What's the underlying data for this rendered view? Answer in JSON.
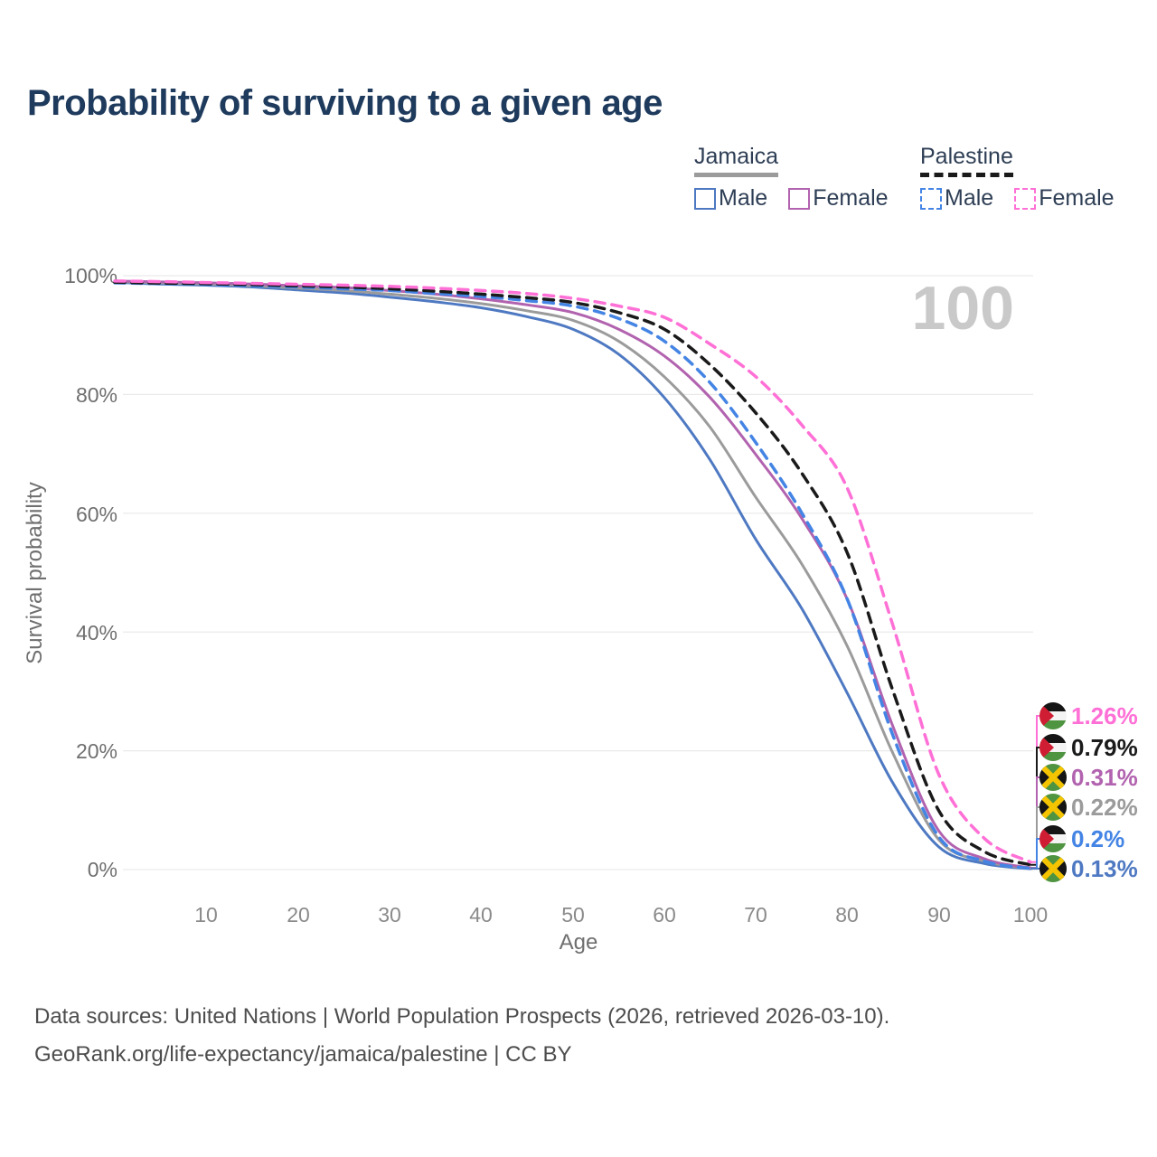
{
  "title": "Probability of surviving to a given age",
  "watermark": "100",
  "legend": {
    "groups": [
      {
        "label": "Jamaica",
        "line_style": "solid",
        "items": [
          {
            "label": "Male"
          },
          {
            "label": "Female"
          }
        ]
      },
      {
        "label": "Palestine",
        "line_style": "dashed",
        "items": [
          {
            "label": "Male"
          },
          {
            "label": "Female"
          }
        ]
      }
    ]
  },
  "chart_data": {
    "type": "line",
    "title": "Probability of surviving to a given age",
    "xlabel": "Age",
    "ylabel": "Survival probability",
    "xlim": [
      0,
      100
    ],
    "ylim": [
      0,
      100
    ],
    "grid": "horizontal-only",
    "x_ticks": [
      "10",
      "20",
      "30",
      "40",
      "50",
      "60",
      "70",
      "80",
      "90",
      "100"
    ],
    "y_ticks": [
      "0%",
      "20%",
      "40%",
      "60%",
      "80%",
      "100%"
    ],
    "ages": [
      0,
      5,
      10,
      15,
      20,
      25,
      30,
      35,
      40,
      45,
      50,
      55,
      60,
      65,
      70,
      75,
      80,
      85,
      90,
      95,
      100
    ],
    "series": [
      {
        "name": "Jamaica Male",
        "country": "Jamaica",
        "sex": "Male",
        "style": "solid",
        "color": "#4e79c2",
        "end_value_label": "0.13%",
        "values": [
          98.9,
          98.6,
          98.4,
          98.1,
          97.6,
          97.1,
          96.4,
          95.6,
          94.6,
          93.1,
          91.0,
          86.8,
          79.5,
          69.0,
          55.6,
          44.0,
          29.7,
          14.5,
          3.8,
          1.0,
          0.13
        ]
      },
      {
        "name": "Jamaica Both sexes",
        "country": "Jamaica",
        "sex": "Both",
        "style": "solid",
        "color": "#9b9b9b",
        "end_value_label": "0.22%",
        "values": [
          99.0,
          98.8,
          98.6,
          98.3,
          97.9,
          97.5,
          96.9,
          96.2,
          95.3,
          94.1,
          92.5,
          89.0,
          83.0,
          74.5,
          62.7,
          51.5,
          37.6,
          19.5,
          5.0,
          1.4,
          0.22
        ]
      },
      {
        "name": "Jamaica Female",
        "country": "Jamaica",
        "sex": "Female",
        "style": "solid",
        "color": "#b263af",
        "end_value_label": "0.31%",
        "values": [
          99.1,
          98.95,
          98.8,
          98.6,
          98.3,
          98.0,
          97.5,
          96.9,
          96.1,
          95.1,
          93.8,
          91.0,
          86.5,
          79.5,
          69.9,
          59.2,
          45.5,
          24.0,
          6.5,
          1.8,
          0.31
        ]
      },
      {
        "name": "Palestine Male",
        "country": "Palestine",
        "sex": "Male",
        "style": "dashed",
        "color": "#4484e4",
        "end_value_label": "0.2%",
        "values": [
          98.8,
          98.65,
          98.5,
          98.3,
          98.1,
          97.8,
          97.5,
          97.0,
          96.5,
          95.8,
          94.9,
          92.8,
          89.0,
          82.0,
          71.9,
          60.1,
          45.5,
          22.5,
          5.5,
          1.4,
          0.2
        ]
      },
      {
        "name": "Palestine Both sexes",
        "country": "Palestine",
        "sex": "Both",
        "style": "dashed",
        "color": "#1a1a1a",
        "end_value_label": "0.79%",
        "values": [
          98.9,
          98.75,
          98.65,
          98.5,
          98.3,
          98.1,
          97.8,
          97.4,
          96.9,
          96.3,
          95.5,
          93.8,
          91.0,
          85.0,
          76.9,
          66.8,
          53.3,
          30.0,
          9.9,
          3.0,
          0.79
        ]
      },
      {
        "name": "Palestine Female",
        "country": "Palestine",
        "sex": "Female",
        "style": "dashed",
        "color": "#ff70d6",
        "end_value_label": "1.26%",
        "values": [
          99.1,
          99.0,
          98.85,
          98.7,
          98.55,
          98.4,
          98.2,
          97.9,
          97.5,
          97.0,
          96.2,
          94.9,
          93.0,
          88.5,
          83.0,
          74.9,
          64.2,
          41.0,
          16.0,
          5.2,
          1.26
        ]
      }
    ],
    "legend_position": "top-right"
  },
  "end_labels": [
    {
      "value": "1.26%",
      "flag": "palestine",
      "series": "Palestine Female",
      "color": "#ff70d6"
    },
    {
      "value": "0.79%",
      "flag": "palestine",
      "series": "Palestine Both sexes",
      "color": "#1a1a1a"
    },
    {
      "value": "0.31%",
      "flag": "jamaica",
      "series": "Jamaica Female",
      "color": "#b263af"
    },
    {
      "value": "0.22%",
      "flag": "jamaica",
      "series": "Jamaica Both sexes",
      "color": "#9b9b9b"
    },
    {
      "value": "0.2%",
      "flag": "palestine",
      "series": "Palestine Male",
      "color": "#4484e4"
    },
    {
      "value": "0.13%",
      "flag": "jamaica",
      "series": "Jamaica Male",
      "color": "#4e79c2"
    }
  ],
  "footer": {
    "line1": "Data sources: United Nations | World Population Prospects (2026, retrieved 2026-03-10).",
    "line2": "GeoRank.org/life-expectancy/jamaica/palestine | CC BY"
  }
}
